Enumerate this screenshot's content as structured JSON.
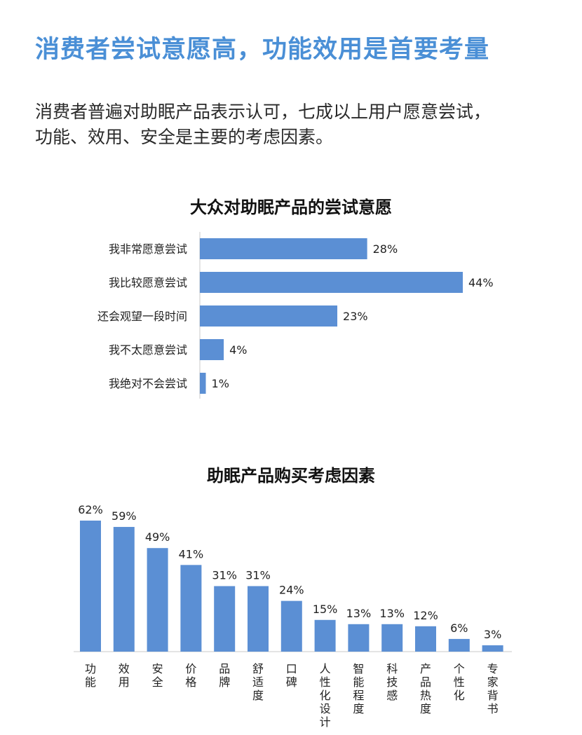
{
  "header": {
    "headline": "消费者尝试意愿高，功能效用是首要考量",
    "intro_line1": "消费者普遍对助眠产品表示认可，七成以上用户愿意尝试，",
    "intro_line2": "功能、效用、安全是主要的考虑因素。"
  },
  "colors": {
    "headline": "#4a8fd6",
    "bar": "#5b8fd4",
    "axis": "#c8c8c8"
  },
  "chart_data": [
    {
      "type": "bar",
      "orientation": "horizontal",
      "title": "大众对助眠产品的尝试意愿",
      "categories": [
        "我非常愿意尝试",
        "我比较愿意尝试",
        "还会观望一段时间",
        "我不太愿意尝试",
        "我绝对不会尝试"
      ],
      "values": [
        28,
        44,
        23,
        4,
        1
      ],
      "value_labels": [
        "28%",
        "44%",
        "23%",
        "4%",
        "1%"
      ],
      "unit": "%",
      "xlim": [
        0,
        50
      ],
      "grid": false
    },
    {
      "type": "bar",
      "orientation": "vertical",
      "title": "助眠产品购买考虑因素",
      "categories": [
        "功能",
        "效用",
        "安全",
        "价格",
        "品牌",
        "舒适度",
        "口碑",
        "人性化设计",
        "智能程度",
        "科技感",
        "产品热度",
        "个性化",
        "专家背书"
      ],
      "values": [
        62,
        59,
        49,
        41,
        31,
        31,
        24,
        15,
        13,
        13,
        12,
        6,
        3
      ],
      "value_labels": [
        "62%",
        "59%",
        "49%",
        "41%",
        "31%",
        "31%",
        "24%",
        "15%",
        "13%",
        "13%",
        "12%",
        "6%",
        "3%"
      ],
      "unit": "%",
      "ylim": [
        0,
        65
      ],
      "grid": false
    }
  ]
}
